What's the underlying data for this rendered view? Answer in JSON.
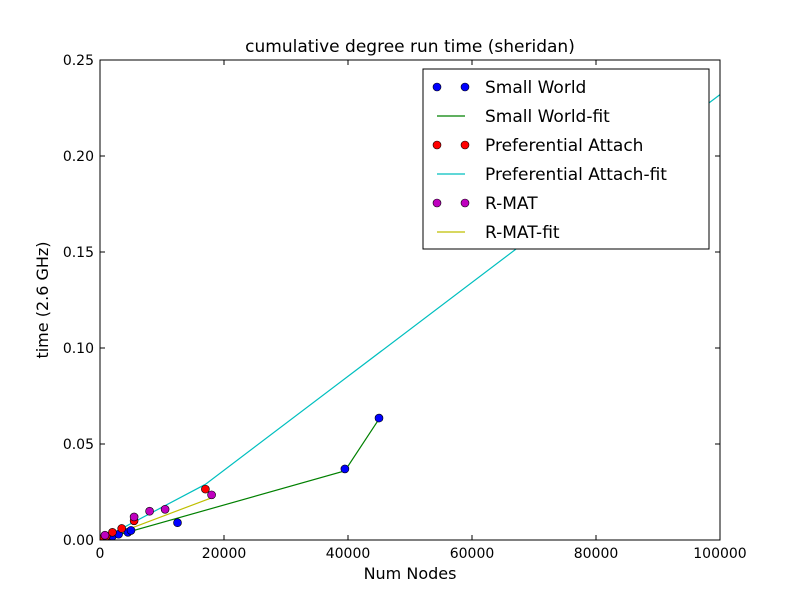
{
  "chart_data": {
    "type": "scatter",
    "title": "cumulative degree run time (sheridan)",
    "xlabel": "Num Nodes",
    "ylabel": "time (2.6 GHz)",
    "xlim": [
      0,
      100000
    ],
    "ylim": [
      0,
      0.25
    ],
    "xticks": [
      0,
      20000,
      40000,
      60000,
      80000,
      100000
    ],
    "xtick_labels": [
      "0",
      "20000",
      "40000",
      "60000",
      "80000",
      "100000"
    ],
    "yticks": [
      0,
      0.05,
      0.1,
      0.15,
      0.2,
      0.25
    ],
    "ytick_labels": [
      "0.00",
      "0.05",
      "0.10",
      "0.15",
      "0.20",
      "0.25"
    ],
    "grid": false,
    "legend_position": "top-right",
    "series": [
      {
        "name": "Small World",
        "kind": "points",
        "color": "#0000ff",
        "x": [
          500,
          1000,
          2000,
          3000,
          4500,
          5000,
          12500,
          39500,
          45000
        ],
        "y": [
          0.0005,
          0.001,
          0.002,
          0.003,
          0.004,
          0.005,
          0.009,
          0.037,
          0.0635
        ]
      },
      {
        "name": "Small World-fit",
        "kind": "line",
        "color": "#008000",
        "x": [
          0,
          39500,
          45000
        ],
        "y": [
          0.0,
          0.036,
          0.063
        ]
      },
      {
        "name": "Preferential Attach",
        "kind": "points",
        "color": "#ff0000",
        "x": [
          500,
          1000,
          2000,
          3500,
          5500,
          17000
        ],
        "y": [
          0.001,
          0.002,
          0.004,
          0.006,
          0.01,
          0.0265
        ]
      },
      {
        "name": "Preferential Attach-fit",
        "kind": "line",
        "color": "#00bfbf",
        "x": [
          0,
          17000,
          100000
        ],
        "y": [
          0.0,
          0.029,
          0.232
        ]
      },
      {
        "name": "R-MAT",
        "kind": "points",
        "color": "#bf00bf",
        "x": [
          800,
          5500,
          8000,
          10500,
          18000
        ],
        "y": [
          0.0025,
          0.012,
          0.015,
          0.016,
          0.0235
        ]
      },
      {
        "name": "R-MAT-fit",
        "kind": "line",
        "color": "#bfbf00",
        "x": [
          0,
          18000
        ],
        "y": [
          0.0,
          0.022
        ]
      }
    ]
  }
}
